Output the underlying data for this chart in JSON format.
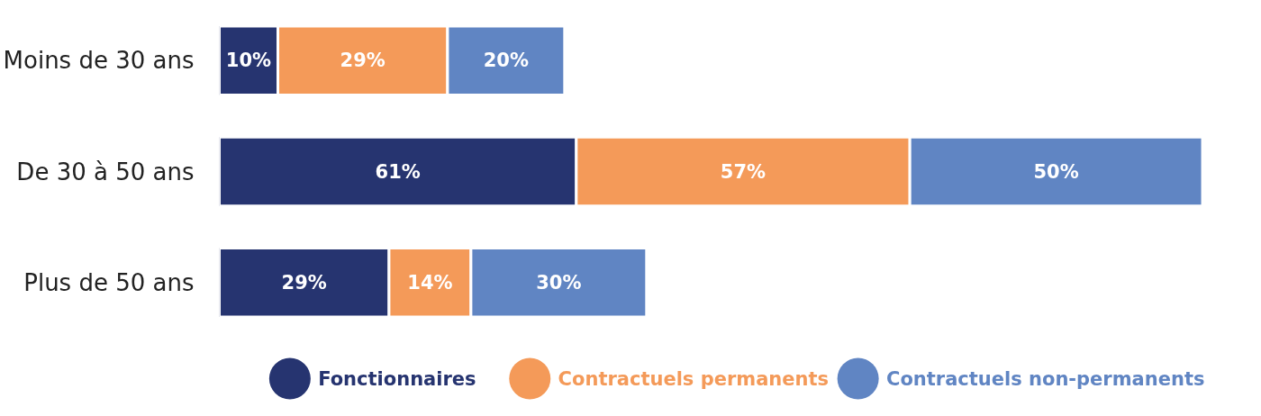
{
  "chart_data": {
    "type": "bar",
    "orientation": "horizontal",
    "stacked": true,
    "legend": "bottom",
    "grid": false,
    "tick_labels": "y",
    "categories": [
      "Moins de 30 ans",
      "De 30 à 50 ans",
      "Plus de 50 ans"
    ],
    "series": [
      {
        "name": "Fonctionnaires",
        "color": "#263470",
        "values": [
          10,
          61,
          29
        ],
        "value_labels": [
          "10%",
          "61%",
          "29%"
        ]
      },
      {
        "name": "Contractuels permanents",
        "color": "#f49a59",
        "values": [
          29,
          57,
          14
        ],
        "value_labels": [
          "29%",
          "57%",
          "14%"
        ]
      },
      {
        "name": "Contractuels non-permanents",
        "color": "#6085c3",
        "values": [
          20,
          50,
          30
        ],
        "value_labels": [
          "20%",
          "50%",
          "30%"
        ]
      }
    ]
  }
}
